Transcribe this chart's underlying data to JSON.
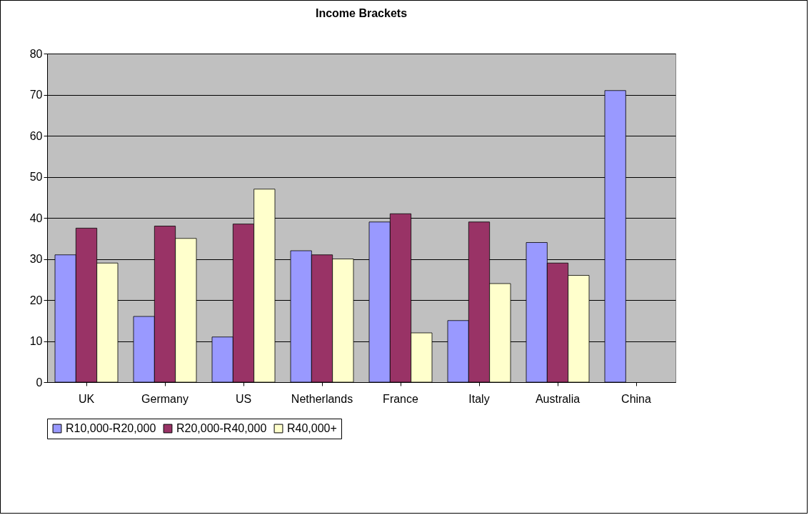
{
  "chart_data": {
    "type": "bar",
    "title": "Income Brackets",
    "categories": [
      "UK",
      "Germany",
      "US",
      "Netherlands",
      "France",
      "Italy",
      "Australia",
      "China"
    ],
    "series": [
      {
        "name": "R10,000-R20,000",
        "color": "#9999ff",
        "values": [
          31,
          16,
          11,
          32,
          39,
          15,
          34,
          71
        ]
      },
      {
        "name": "R20,000-R40,000",
        "color": "#993366",
        "values": [
          37.5,
          38,
          38.5,
          31,
          41,
          39,
          29,
          0
        ]
      },
      {
        "name": "R40,000+",
        "color": "#ffffcc",
        "values": [
          29,
          35,
          47,
          30,
          12,
          24,
          26,
          0
        ]
      }
    ],
    "ylim": [
      0,
      80
    ],
    "yticks": [
      0,
      10,
      20,
      30,
      40,
      50,
      60,
      70,
      80
    ],
    "grid": "y",
    "legend": "bottom"
  }
}
